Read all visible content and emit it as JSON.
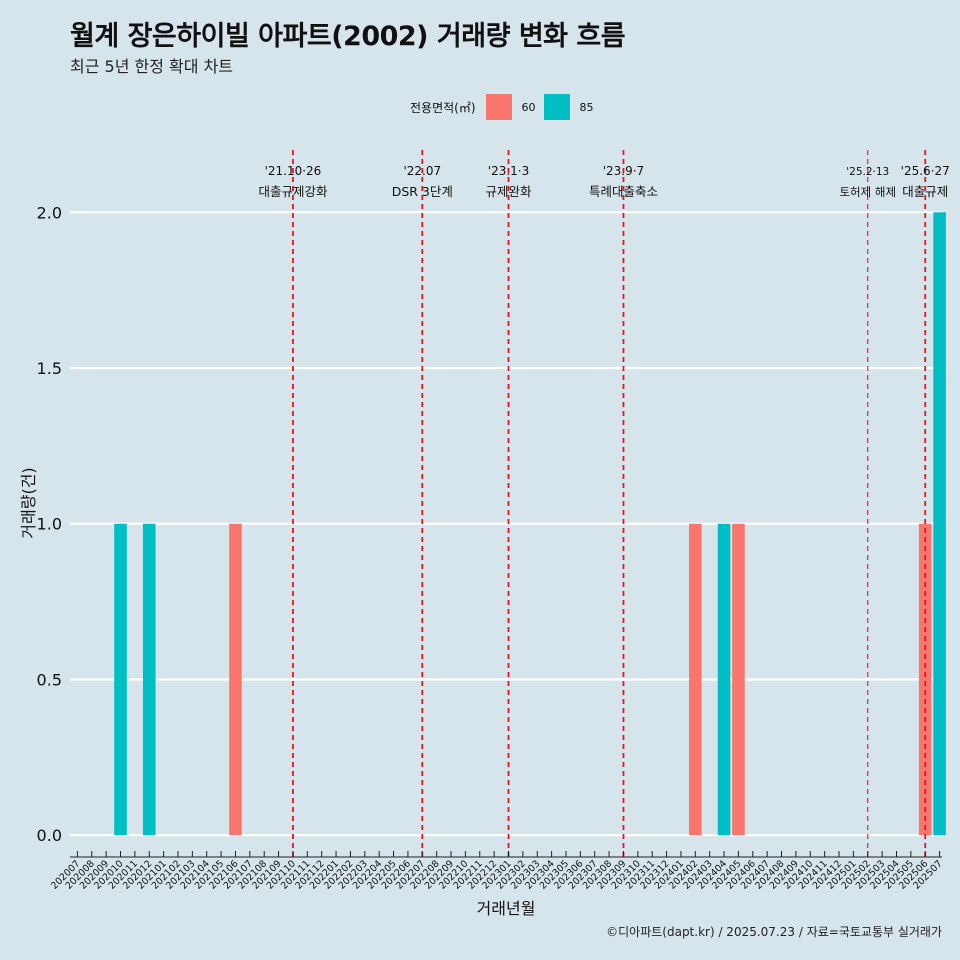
{
  "title": "월계 장은하이빌 아파트(2002) 거래량 변화 흐름",
  "subtitle": "최근 5년 한정 확대 차트",
  "legend": {
    "title": "전용면적(㎡)",
    "items": [
      {
        "label": "60",
        "color": "#f8766d"
      },
      {
        "label": "85",
        "color": "#00bfc4"
      }
    ]
  },
  "caption": "©디아파트(dapt.kr) / 2025.07.23 / 자료=국토교통부 실거래가",
  "chart_data": {
    "type": "bar",
    "xlabel": "거래년월",
    "ylabel": "거래량(건)",
    "ylim": [
      -0.07,
      2.2
    ],
    "yticks": [
      "0.0",
      "0.5",
      "1.0",
      "1.5",
      "2.0"
    ],
    "ytick_values": [
      0,
      0.5,
      1.0,
      1.5,
      2.0
    ],
    "grid": true,
    "legend_position": "top",
    "categories": [
      "202007",
      "202008",
      "202009",
      "202010",
      "202011",
      "202012",
      "202101",
      "202102",
      "202103",
      "202104",
      "202105",
      "202106",
      "202107",
      "202108",
      "202109",
      "202110",
      "202111",
      "202112",
      "202201",
      "202202",
      "202203",
      "202204",
      "202205",
      "202206",
      "202207",
      "202208",
      "202209",
      "202210",
      "202211",
      "202212",
      "202301",
      "202302",
      "202303",
      "202304",
      "202305",
      "202306",
      "202307",
      "202308",
      "202309",
      "202310",
      "202311",
      "202312",
      "202401",
      "202402",
      "202403",
      "202404",
      "202405",
      "202406",
      "202407",
      "202408",
      "202409",
      "202410",
      "202411",
      "202412",
      "202501",
      "202502",
      "202503",
      "202504",
      "202505",
      "202506",
      "202507"
    ],
    "bars": [
      {
        "month": "202010",
        "series": "85",
        "value": 1
      },
      {
        "month": "202012",
        "series": "85",
        "value": 1
      },
      {
        "month": "202106",
        "series": "60",
        "value": 1
      },
      {
        "month": "202402",
        "series": "60",
        "value": 1
      },
      {
        "month": "202404",
        "series": "85",
        "value": 1
      },
      {
        "month": "202405",
        "series": "60",
        "value": 1
      },
      {
        "month": "202506",
        "series": "60",
        "value": 1
      },
      {
        "month": "202507",
        "series": "85",
        "value": 2
      }
    ],
    "annotations": [
      {
        "month": "202110",
        "date": "'21.10·26",
        "label": "대출규제강화",
        "major": true
      },
      {
        "month": "202207",
        "date": "'22.07",
        "label": "DSR 3단계",
        "major": true
      },
      {
        "month": "202301",
        "date": "'23.1·3",
        "label": "규제완화",
        "major": true
      },
      {
        "month": "202309",
        "date": "'23.9·7",
        "label": "특례대출축소",
        "major": true
      },
      {
        "month": "202502",
        "date": "'25.2·13",
        "label": "토허제 해제",
        "major": false
      },
      {
        "month": "202506",
        "date": "'25.6·27",
        "label": "대출규제",
        "major": true
      }
    ]
  }
}
